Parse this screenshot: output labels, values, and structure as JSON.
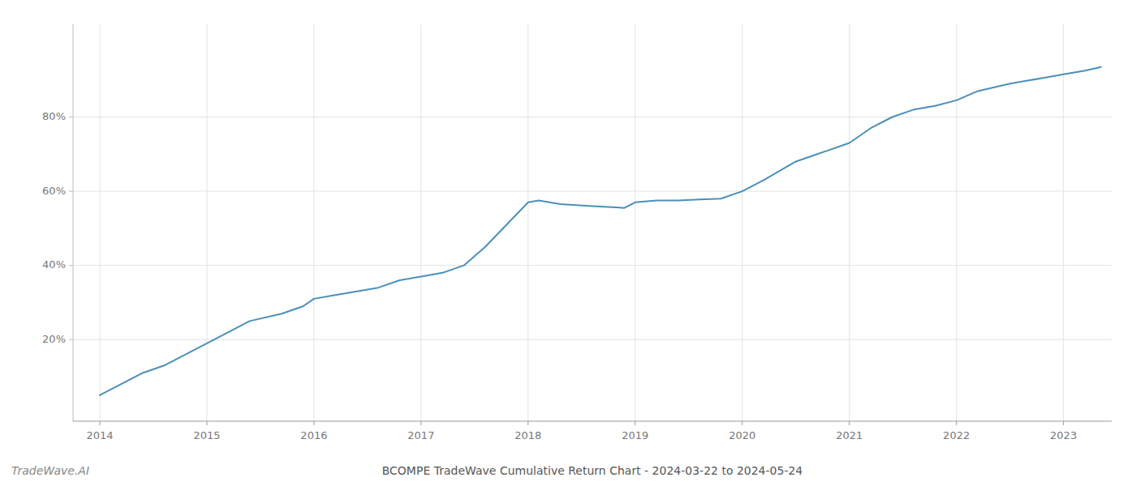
{
  "chart_data": {
    "type": "line",
    "title": "BCOMPE TradeWave Cumulative Return Chart - 2024-03-22 to 2024-05-24",
    "annotations": [
      "TradeWave.AI"
    ],
    "color": "#4a90b8",
    "grid": true,
    "x": [
      2014.0,
      2014.2,
      2014.4,
      2014.6,
      2014.8,
      2015.0,
      2015.2,
      2015.4,
      2015.7,
      2015.9,
      2016.0,
      2016.2,
      2016.4,
      2016.6,
      2016.8,
      2017.0,
      2017.2,
      2017.4,
      2017.6,
      2017.8,
      2018.0,
      2018.1,
      2018.3,
      2018.6,
      2018.9,
      2019.0,
      2019.2,
      2019.4,
      2019.6,
      2019.8,
      2020.0,
      2020.2,
      2020.5,
      2020.7,
      2021.0,
      2021.2,
      2021.4,
      2021.6,
      2021.8,
      2022.0,
      2022.2,
      2022.5,
      2022.8,
      2023.0,
      2023.2,
      2023.35
    ],
    "values": [
      0.05,
      0.08,
      0.11,
      0.13,
      0.16,
      0.19,
      0.22,
      0.25,
      0.27,
      0.29,
      0.31,
      0.32,
      0.33,
      0.34,
      0.36,
      0.37,
      0.38,
      0.4,
      0.45,
      0.51,
      0.57,
      0.575,
      0.565,
      0.56,
      0.555,
      0.57,
      0.575,
      0.575,
      0.578,
      0.58,
      0.6,
      0.63,
      0.68,
      0.7,
      0.73,
      0.77,
      0.8,
      0.82,
      0.83,
      0.845,
      0.87,
      0.89,
      0.905,
      0.915,
      0.925,
      0.935
    ],
    "xlim": [
      2013.75,
      2023.45
    ],
    "ylim": [
      -0.02,
      1.05
    ],
    "xticks": [
      2014,
      2015,
      2016,
      2017,
      2018,
      2019,
      2020,
      2021,
      2022,
      2023
    ],
    "yticks": [
      {
        "value": 0.2,
        "label": "20%"
      },
      {
        "value": 0.4,
        "label": "40%"
      },
      {
        "value": 0.6,
        "label": "60%"
      },
      {
        "value": 0.8,
        "label": "80%"
      }
    ]
  }
}
